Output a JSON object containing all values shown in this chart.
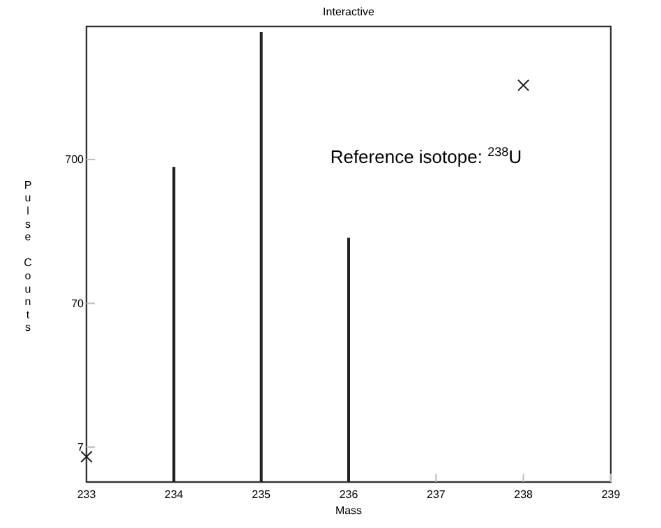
{
  "chart_data": {
    "type": "bar",
    "title": "Interactive",
    "xlabel": "Mass",
    "ylabel": "Pulse Counts",
    "annotations": [
      "Reference isotope: $^{238}$U"
    ],
    "log": "y",
    "grid": false,
    "xlim": [
      233,
      239
    ],
    "xticks": [
      233,
      234,
      235,
      236,
      237,
      238,
      239
    ],
    "ylim": [
      4,
      5900
    ],
    "yticks": [
      7,
      70,
      700
    ],
    "series": [
      {
        "type": "bar",
        "color": "#222222",
        "x": [
          234,
          235,
          236
        ],
        "values": [
          620,
          5400,
          200
        ]
      },
      {
        "type": "scatter",
        "color": "#222222",
        "marker": "cross",
        "x": [
          233,
          238
        ],
        "values": [
          6,
          2300
        ]
      }
    ]
  }
}
